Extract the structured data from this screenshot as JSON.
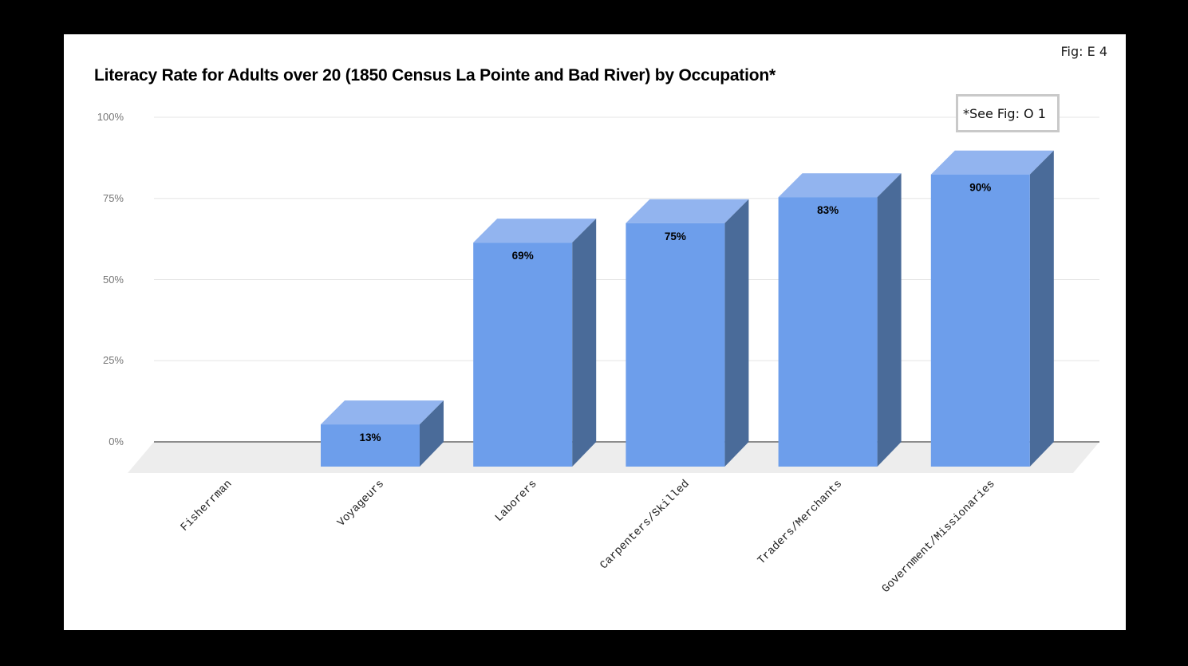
{
  "figure_label": "Fig: E 4",
  "title": "Literacy Rate for Adults over 20 (1850 Census La Pointe and Bad River) by Occupation*",
  "annotation": "*See Fig: O 1",
  "chart_data": {
    "type": "bar",
    "style": "3d-column",
    "title": "Literacy Rate for Adults over 20 (1850 Census La Pointe and Bad River) by Occupation*",
    "categories": [
      "Fisherrman",
      "Voyageurs",
      "Laborers",
      "Carpenters/Skilled",
      "Traders/Merchants",
      "Government/Missionaries"
    ],
    "values": [
      0,
      13,
      69,
      75,
      83,
      90
    ],
    "data_labels": [
      "",
      "13%",
      "69%",
      "75%",
      "83%",
      "90%"
    ],
    "xlabel": "",
    "ylabel": "",
    "ylim": [
      0,
      100
    ],
    "yticks": [
      "0%",
      "25%",
      "50%",
      "75%",
      "100%"
    ],
    "grid": true,
    "legend": false,
    "colors": {
      "bar_front": "#6d9eeb",
      "bar_top": "#92b4ef",
      "bar_side": "#4a6b99",
      "floor": "#ededed",
      "gridline": "#e6e6e6",
      "axis_line": "#8c8c8c",
      "tick_label": "#757575",
      "category_label": "#222222"
    }
  }
}
